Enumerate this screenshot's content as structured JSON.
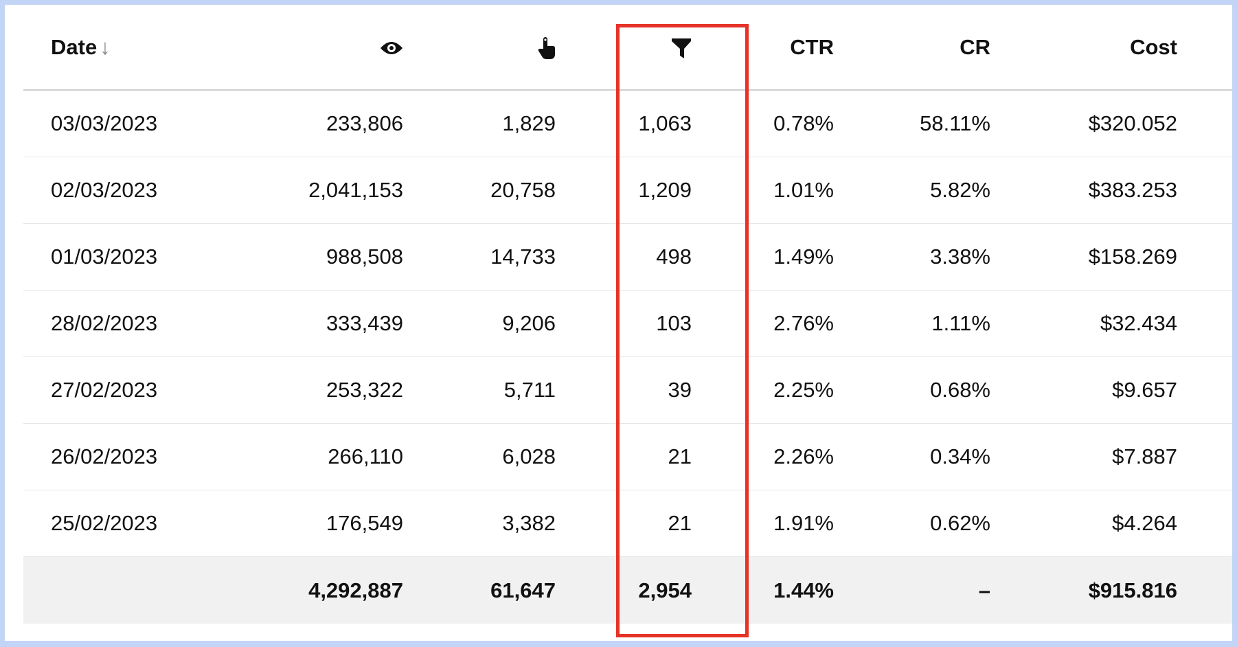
{
  "header": {
    "date_label": "Date",
    "sort_icon": "arrow-down-icon",
    "impressions_icon": "eye-icon",
    "clicks_icon": "pointer-hand-icon",
    "conversions_icon": "funnel-icon",
    "ctr_label": "CTR",
    "cr_label": "CR",
    "cost_label": "Cost"
  },
  "rows": [
    {
      "date": "03/03/2023",
      "impressions": "233,806",
      "clicks": "1,829",
      "conversions": "1,063",
      "ctr": "0.78%",
      "cr": "58.11%",
      "cost": "$320.052"
    },
    {
      "date": "02/03/2023",
      "impressions": "2,041,153",
      "clicks": "20,758",
      "conversions": "1,209",
      "ctr": "1.01%",
      "cr": "5.82%",
      "cost": "$383.253"
    },
    {
      "date": "01/03/2023",
      "impressions": "988,508",
      "clicks": "14,733",
      "conversions": "498",
      "ctr": "1.49%",
      "cr": "3.38%",
      "cost": "$158.269"
    },
    {
      "date": "28/02/2023",
      "impressions": "333,439",
      "clicks": "9,206",
      "conversions": "103",
      "ctr": "2.76%",
      "cr": "1.11%",
      "cost": "$32.434"
    },
    {
      "date": "27/02/2023",
      "impressions": "253,322",
      "clicks": "5,711",
      "conversions": "39",
      "ctr": "2.25%",
      "cr": "0.68%",
      "cost": "$9.657"
    },
    {
      "date": "26/02/2023",
      "impressions": "266,110",
      "clicks": "6,028",
      "conversions": "21",
      "ctr": "2.26%",
      "cr": "0.34%",
      "cost": "$7.887"
    },
    {
      "date": "25/02/2023",
      "impressions": "176,549",
      "clicks": "3,382",
      "conversions": "21",
      "ctr": "1.91%",
      "cr": "0.62%",
      "cost": "$4.264"
    }
  ],
  "totals": {
    "impressions": "4,292,887",
    "clicks": "61,647",
    "conversions": "2,954",
    "ctr": "1.44%",
    "cr": "–",
    "cost": "$915.816"
  },
  "colors": {
    "highlight": "#e53327",
    "frame": "#c3d5f6",
    "total_bg": "#f1f1f1"
  }
}
